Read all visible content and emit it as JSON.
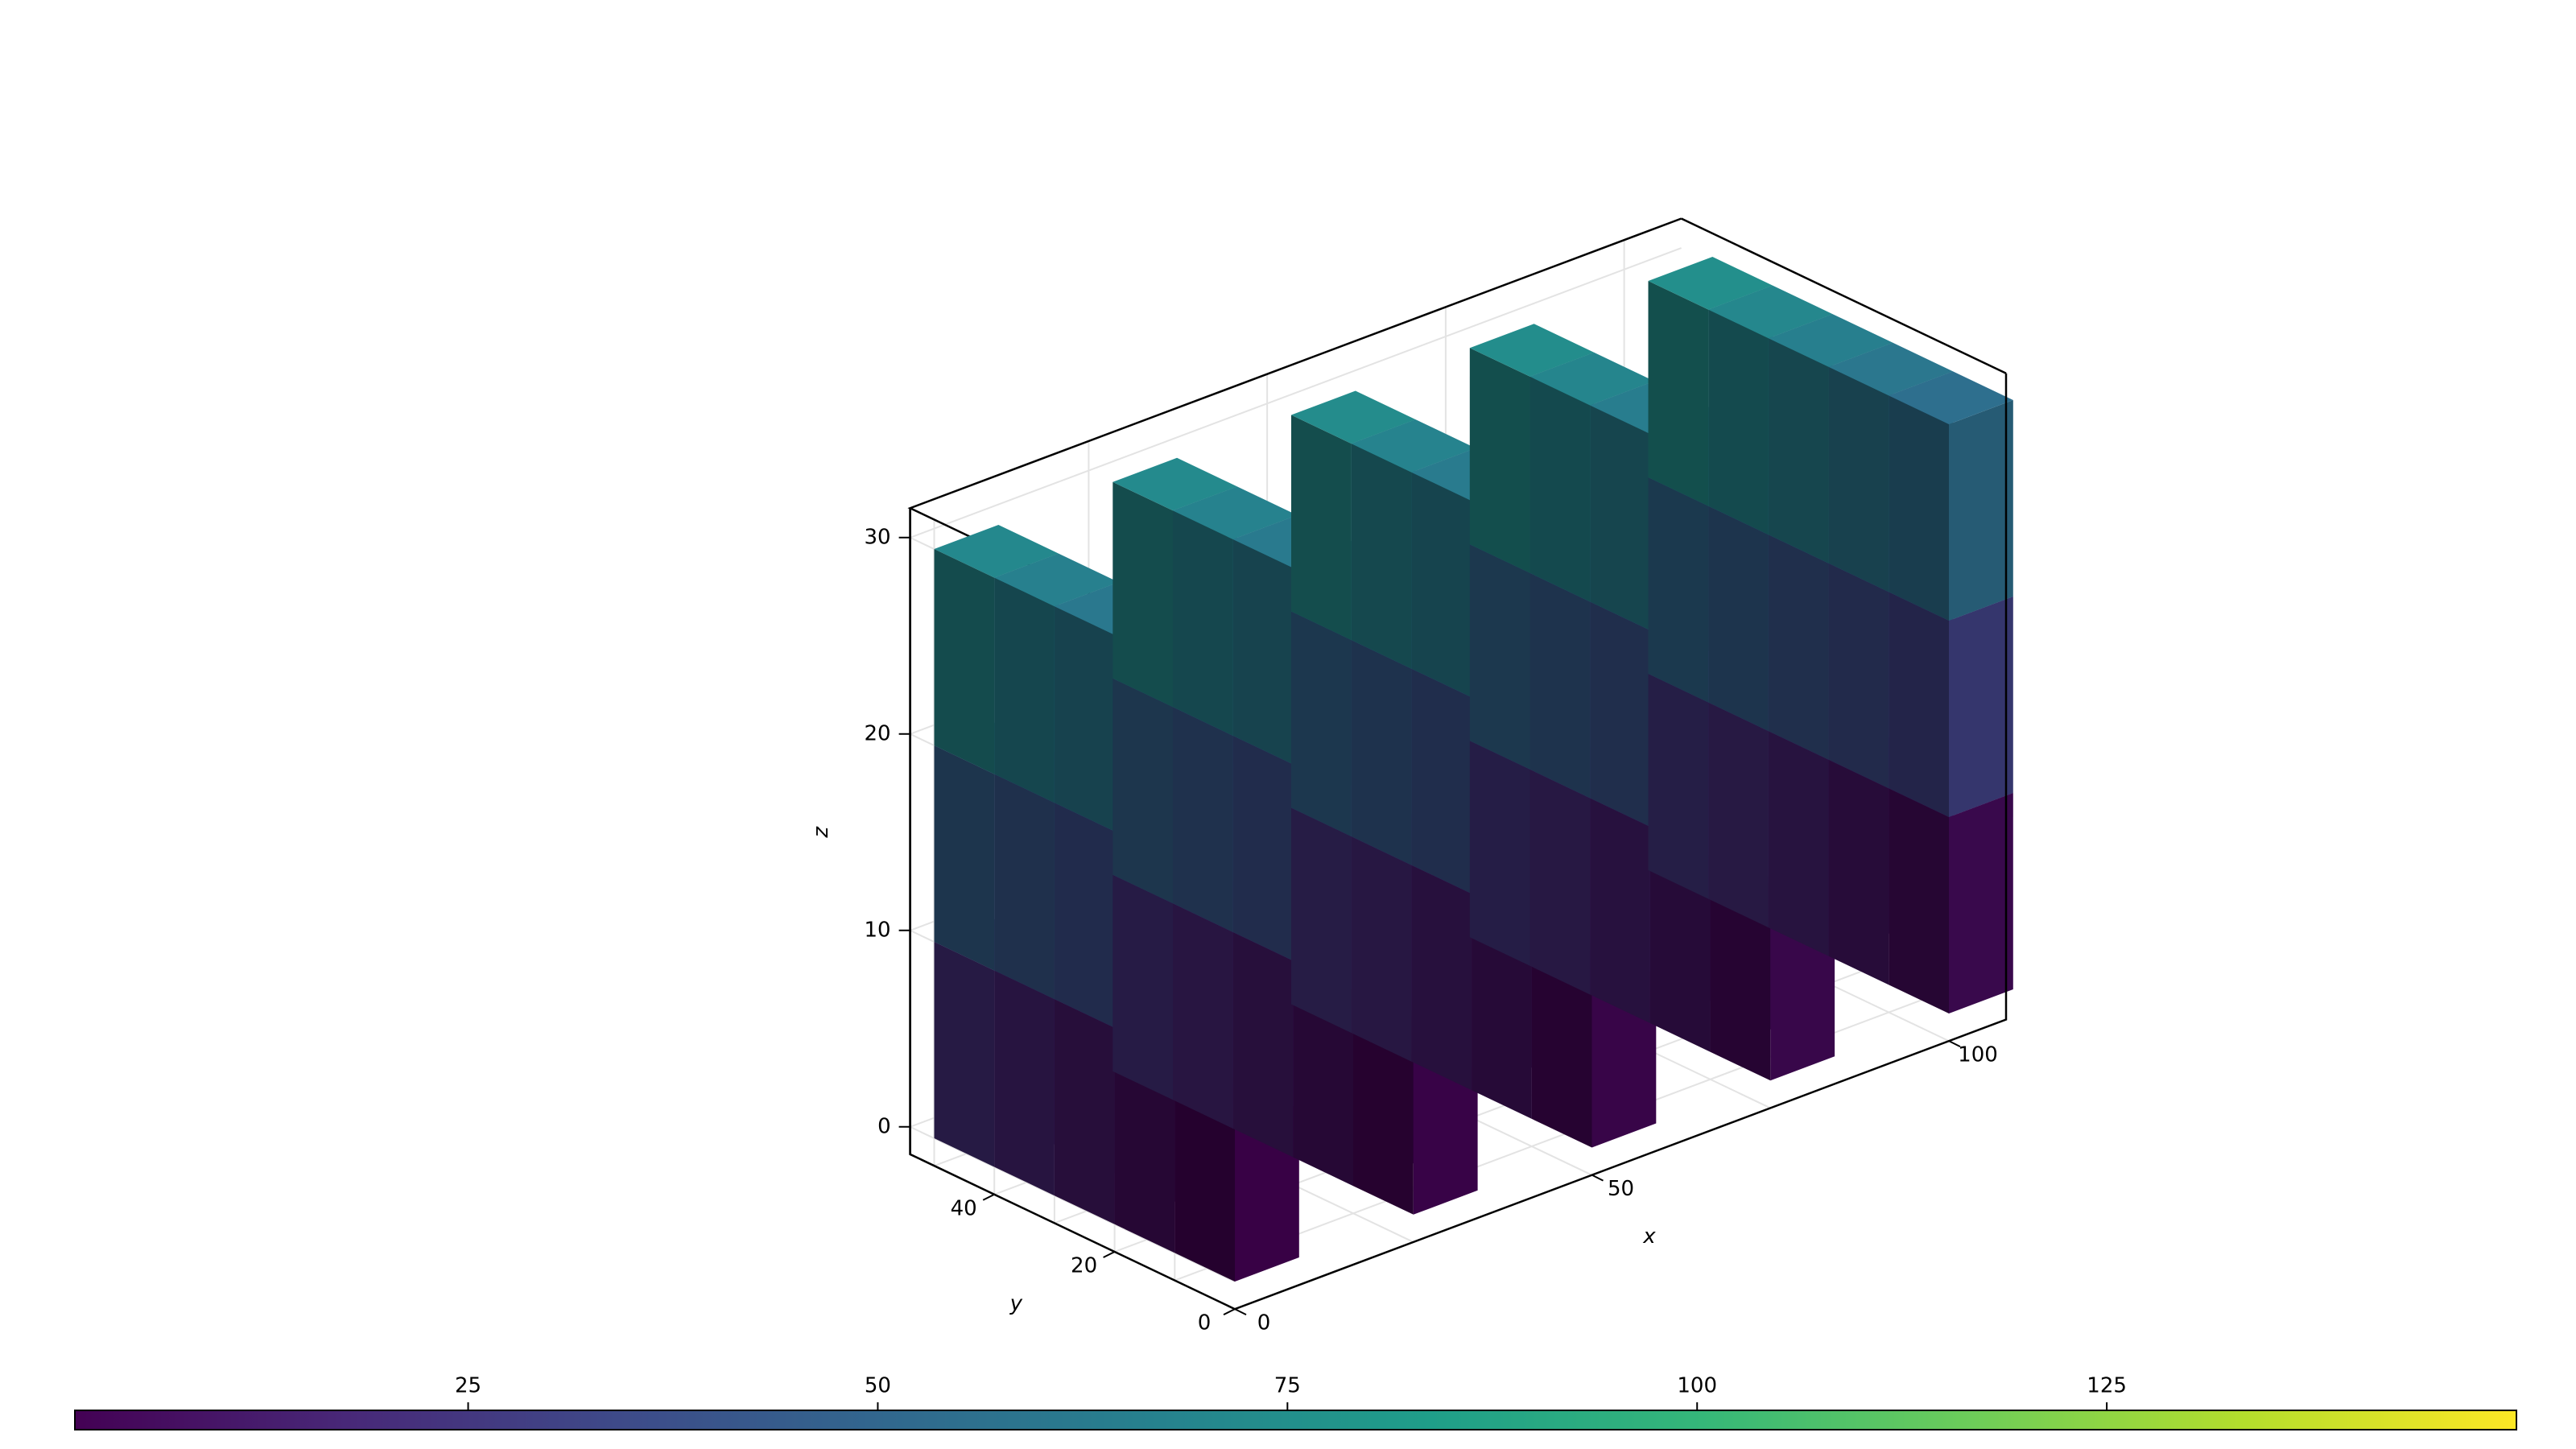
{
  "chart_data": {
    "type": "voxel3d",
    "title": "",
    "xlabel": "x",
    "ylabel": "y",
    "zlabel": "z",
    "xlim": [
      0,
      108
    ],
    "ylim": [
      0,
      54
    ],
    "zlim": [
      0,
      30
    ],
    "grid": true,
    "colormap": "viridis",
    "dims": {
      "nx": 5,
      "ny": 5,
      "nz": 3
    },
    "voxel_size": [
      9,
      10,
      10
    ],
    "value_rule": "value = 1 + i + 5*j + 25*k (i: x index, j: y index, k: z index)",
    "xticks": [
      0,
      50,
      100
    ],
    "yticks": [
      0,
      20,
      40
    ],
    "zticks": [
      0,
      10,
      20,
      30
    ],
    "colorbar": {
      "position": "bottom",
      "range": [
        1,
        150
      ],
      "ticks": [
        25,
        50,
        75,
        100,
        125
      ]
    }
  }
}
